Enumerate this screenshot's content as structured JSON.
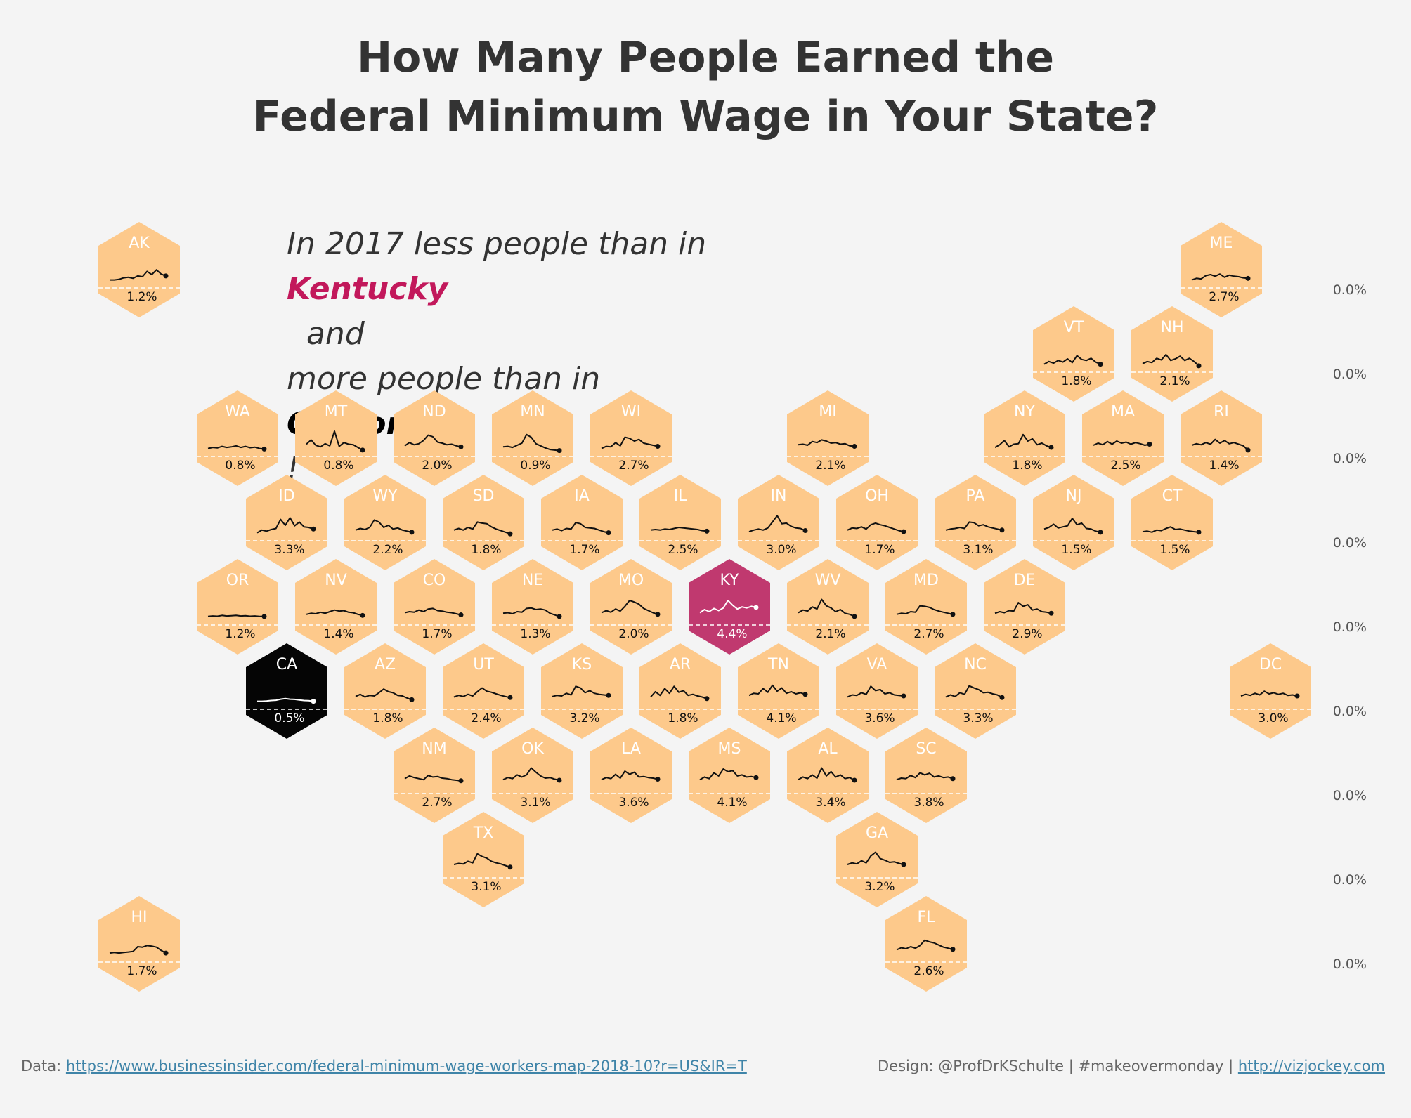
{
  "title": {
    "line1": "How Many People Earned the",
    "line2": "Federal Minimum Wage in Your State?"
  },
  "subtitle": {
    "line1_a": "In 2017 less people than in ",
    "line1_highlight": "Kentucky",
    "line1_b": "  and",
    "line2_a": "more people than in ",
    "line2_highlight": "California",
    "line2_b": "!"
  },
  "footer": {
    "data_label": "Data: ",
    "data_link": "https://www.businessinsider.com/federal-minimum-wage-workers-map-2018-10?r=US&IR=T",
    "design_label": "Design: @ProfDrKSchulte | #makeovermonday | ",
    "design_link": "http://vizjockey.com"
  },
  "colors": {
    "background": "#f4f4f4",
    "hex_default": "#fdc98b",
    "hex_kentucky": "#c0396f",
    "hex_california": "#050505",
    "title": "#333333",
    "highlight_kentucky": "#c2185b",
    "link": "#3f84a8"
  },
  "chart_data": {
    "type": "hex tile map with sparklines",
    "value_unit": "%",
    "highlight": {
      "max": "KY",
      "min": "CA"
    },
    "right_axis_labels": [
      "0.0%",
      "0.0%",
      "0.0%",
      "0.0%",
      "0.0%",
      "0.0%",
      "0.0%",
      "0.0%",
      "0.0%"
    ],
    "states": [
      {
        "code": "AK",
        "row": 0,
        "col": 0,
        "value_2017": "1.2%",
        "trend": [
          0.3,
          0.3,
          0.32,
          0.38,
          0.4,
          0.36,
          0.45,
          0.42,
          0.62,
          0.5,
          0.68,
          0.52,
          0.45
        ]
      },
      {
        "code": "ME",
        "row": 0,
        "col": 11,
        "value_2017": "2.7%",
        "trend": [
          0.3,
          0.36,
          0.34,
          0.46,
          0.5,
          0.44,
          0.52,
          0.4,
          0.48,
          0.44,
          0.42,
          0.38,
          0.36
        ]
      },
      {
        "code": "VT",
        "row": 1,
        "col": 9.5,
        "value_2017": "1.8%",
        "trend": [
          0.3,
          0.4,
          0.34,
          0.44,
          0.38,
          0.5,
          0.36,
          0.62,
          0.48,
          0.44,
          0.52,
          0.38,
          0.3
        ]
      },
      {
        "code": "NH",
        "row": 1,
        "col": 10.5,
        "value_2017": "2.1%",
        "trend": [
          0.32,
          0.4,
          0.36,
          0.52,
          0.46,
          0.66,
          0.44,
          0.5,
          0.6,
          0.44,
          0.52,
          0.4,
          0.24
        ]
      },
      {
        "code": "WA",
        "row": 2,
        "col": 1,
        "value_2017": "0.8%",
        "trend": [
          0.3,
          0.34,
          0.32,
          0.38,
          0.34,
          0.36,
          0.4,
          0.34,
          0.38,
          0.33,
          0.35,
          0.3,
          0.28
        ]
      },
      {
        "code": "MT",
        "row": 2,
        "col": 2,
        "value_2017": "0.8%",
        "trend": [
          0.46,
          0.62,
          0.42,
          0.36,
          0.48,
          0.4,
          0.95,
          0.38,
          0.52,
          0.46,
          0.44,
          0.34,
          0.24
        ]
      },
      {
        "code": "ND",
        "row": 2,
        "col": 3,
        "value_2017": "2.0%",
        "trend": [
          0.4,
          0.52,
          0.44,
          0.48,
          0.6,
          0.8,
          0.74,
          0.54,
          0.5,
          0.44,
          0.46,
          0.4,
          0.36
        ]
      },
      {
        "code": "MN",
        "row": 2,
        "col": 4,
        "value_2017": "0.9%",
        "trend": [
          0.36,
          0.38,
          0.34,
          0.42,
          0.5,
          0.82,
          0.72,
          0.48,
          0.4,
          0.32,
          0.26,
          0.24,
          0.22
        ]
      },
      {
        "code": "WI",
        "row": 2,
        "col": 5,
        "value_2017": "2.7%",
        "trend": [
          0.3,
          0.38,
          0.36,
          0.52,
          0.4,
          0.72,
          0.68,
          0.58,
          0.64,
          0.5,
          0.46,
          0.42,
          0.38
        ]
      },
      {
        "code": "MI",
        "row": 2,
        "col": 7,
        "value_2017": "2.1%",
        "trend": [
          0.44,
          0.46,
          0.42,
          0.56,
          0.52,
          0.62,
          0.58,
          0.5,
          0.52,
          0.46,
          0.48,
          0.4,
          0.38
        ]
      },
      {
        "code": "NY",
        "row": 2,
        "col": 9,
        "value_2017": "1.8%",
        "trend": [
          0.34,
          0.44,
          0.6,
          0.36,
          0.46,
          0.48,
          0.82,
          0.58,
          0.66,
          0.44,
          0.5,
          0.4,
          0.34
        ]
      },
      {
        "code": "MA",
        "row": 2,
        "col": 10,
        "value_2017": "2.5%",
        "trend": [
          0.42,
          0.5,
          0.44,
          0.56,
          0.46,
          0.58,
          0.5,
          0.54,
          0.46,
          0.52,
          0.48,
          0.42,
          0.46
        ]
      },
      {
        "code": "RI",
        "row": 2,
        "col": 11,
        "value_2017": "1.4%",
        "trend": [
          0.42,
          0.48,
          0.44,
          0.52,
          0.46,
          0.64,
          0.5,
          0.6,
          0.48,
          0.52,
          0.46,
          0.4,
          0.24
        ]
      },
      {
        "code": "ID",
        "row": 3,
        "col": 1.5,
        "value_2017": "3.3%",
        "trend": [
          0.3,
          0.4,
          0.36,
          0.42,
          0.46,
          0.8,
          0.58,
          0.86,
          0.56,
          0.7,
          0.52,
          0.5,
          0.44
        ]
      },
      {
        "code": "WY",
        "row": 3,
        "col": 2.5,
        "value_2017": "2.2%",
        "trend": [
          0.4,
          0.46,
          0.42,
          0.5,
          0.78,
          0.7,
          0.5,
          0.58,
          0.44,
          0.48,
          0.4,
          0.36,
          0.32
        ]
      },
      {
        "code": "SD",
        "row": 3,
        "col": 3.5,
        "value_2017": "1.8%",
        "trend": [
          0.4,
          0.46,
          0.4,
          0.5,
          0.44,
          0.7,
          0.66,
          0.64,
          0.52,
          0.44,
          0.38,
          0.32,
          0.26
        ]
      },
      {
        "code": "IA",
        "row": 3,
        "col": 4.5,
        "value_2017": "1.7%",
        "trend": [
          0.4,
          0.44,
          0.38,
          0.46,
          0.44,
          0.68,
          0.64,
          0.5,
          0.48,
          0.46,
          0.4,
          0.34,
          0.3
        ]
      },
      {
        "code": "IL",
        "row": 3,
        "col": 5.5,
        "value_2017": "2.5%",
        "trend": [
          0.4,
          0.42,
          0.4,
          0.44,
          0.42,
          0.46,
          0.5,
          0.48,
          0.46,
          0.44,
          0.42,
          0.38,
          0.36
        ]
      },
      {
        "code": "IN",
        "row": 3,
        "col": 6.5,
        "value_2017": "3.0%",
        "trend": [
          0.34,
          0.4,
          0.44,
          0.4,
          0.48,
          0.7,
          0.94,
          0.64,
          0.66,
          0.54,
          0.48,
          0.46,
          0.38
        ]
      },
      {
        "code": "OH",
        "row": 3,
        "col": 7.5,
        "value_2017": "1.7%",
        "trend": [
          0.4,
          0.48,
          0.46,
          0.52,
          0.44,
          0.6,
          0.66,
          0.6,
          0.56,
          0.5,
          0.44,
          0.38,
          0.34
        ]
      },
      {
        "code": "PA",
        "row": 3,
        "col": 8.5,
        "value_2017": "3.1%",
        "trend": [
          0.4,
          0.44,
          0.46,
          0.5,
          0.46,
          0.7,
          0.68,
          0.56,
          0.6,
          0.52,
          0.48,
          0.44,
          0.4
        ]
      },
      {
        "code": "NJ",
        "row": 3,
        "col": 9.5,
        "value_2017": "1.5%",
        "trend": [
          0.44,
          0.5,
          0.62,
          0.48,
          0.52,
          0.56,
          0.84,
          0.6,
          0.66,
          0.46,
          0.44,
          0.36,
          0.32
        ]
      },
      {
        "code": "CT",
        "row": 3,
        "col": 10.5,
        "value_2017": "1.5%",
        "trend": [
          0.34,
          0.36,
          0.32,
          0.4,
          0.38,
          0.46,
          0.52,
          0.42,
          0.44,
          0.4,
          0.36,
          0.34,
          0.32
        ]
      },
      {
        "code": "OR",
        "row": 4,
        "col": 1,
        "value_2017": "1.2%",
        "trend": [
          0.32,
          0.34,
          0.33,
          0.36,
          0.34,
          0.35,
          0.36,
          0.34,
          0.35,
          0.33,
          0.34,
          0.32,
          0.32
        ]
      },
      {
        "code": "NV",
        "row": 4,
        "col": 2,
        "value_2017": "1.4%",
        "trend": [
          0.4,
          0.44,
          0.42,
          0.48,
          0.44,
          0.5,
          0.56,
          0.52,
          0.54,
          0.48,
          0.46,
          0.4,
          0.36
        ]
      },
      {
        "code": "CO",
        "row": 4,
        "col": 3,
        "value_2017": "1.7%",
        "trend": [
          0.46,
          0.5,
          0.48,
          0.56,
          0.5,
          0.6,
          0.62,
          0.54,
          0.52,
          0.48,
          0.46,
          0.42,
          0.38
        ]
      },
      {
        "code": "NE",
        "row": 4,
        "col": 4,
        "value_2017": "1.3%",
        "trend": [
          0.44,
          0.46,
          0.42,
          0.5,
          0.48,
          0.62,
          0.64,
          0.58,
          0.6,
          0.56,
          0.44,
          0.38,
          0.32
        ]
      },
      {
        "code": "MO",
        "row": 4,
        "col": 5,
        "value_2017": "2.0%",
        "trend": [
          0.46,
          0.54,
          0.48,
          0.6,
          0.52,
          0.7,
          0.92,
          0.86,
          0.78,
          0.62,
          0.54,
          0.46,
          0.4
        ]
      },
      {
        "code": "KY",
        "row": 4,
        "col": 6,
        "value_2017": "4.4%",
        "trend": [
          0.46,
          0.58,
          0.5,
          0.62,
          0.54,
          0.64,
          0.92,
          0.74,
          0.6,
          0.68,
          0.64,
          0.7,
          0.66
        ]
      },
      {
        "code": "WV",
        "row": 4,
        "col": 7,
        "value_2017": "2.1%",
        "trend": [
          0.46,
          0.56,
          0.52,
          0.68,
          0.6,
          0.96,
          0.72,
          0.64,
          0.5,
          0.58,
          0.44,
          0.4,
          0.32
        ]
      },
      {
        "code": "MD",
        "row": 4,
        "col": 8,
        "value_2017": "2.7%",
        "trend": [
          0.4,
          0.44,
          0.42,
          0.5,
          0.48,
          0.72,
          0.7,
          0.66,
          0.58,
          0.52,
          0.48,
          0.44,
          0.4
        ]
      },
      {
        "code": "DE",
        "row": 4,
        "col": 9,
        "value_2017": "2.9%",
        "trend": [
          0.44,
          0.5,
          0.46,
          0.54,
          0.52,
          0.84,
          0.7,
          0.76,
          0.56,
          0.6,
          0.5,
          0.48,
          0.44
        ]
      },
      {
        "code": "CA",
        "row": 5,
        "col": 1.5,
        "value_2017": "0.5%",
        "trend": [
          0.3,
          0.3,
          0.31,
          0.33,
          0.34,
          0.38,
          0.4,
          0.38,
          0.37,
          0.35,
          0.33,
          0.32,
          0.3
        ]
      },
      {
        "code": "AZ",
        "row": 5,
        "col": 2.5,
        "value_2017": "1.8%",
        "trend": [
          0.48,
          0.56,
          0.46,
          0.52,
          0.5,
          0.62,
          0.76,
          0.66,
          0.62,
          0.52,
          0.5,
          0.42,
          0.36
        ]
      },
      {
        "code": "UT",
        "row": 5,
        "col": 3.5,
        "value_2017": "2.4%",
        "trend": [
          0.46,
          0.52,
          0.48,
          0.56,
          0.5,
          0.66,
          0.8,
          0.68,
          0.64,
          0.58,
          0.52,
          0.48,
          0.44
        ]
      },
      {
        "code": "KS",
        "row": 5,
        "col": 4.5,
        "value_2017": "3.2%",
        "trend": [
          0.48,
          0.52,
          0.5,
          0.6,
          0.54,
          0.86,
          0.8,
          0.62,
          0.7,
          0.6,
          0.56,
          0.54,
          0.52
        ]
      },
      {
        "code": "AR",
        "row": 5,
        "col": 5.5,
        "value_2017": "1.8%",
        "trend": [
          0.46,
          0.66,
          0.52,
          0.78,
          0.6,
          0.86,
          0.64,
          0.7,
          0.52,
          0.56,
          0.5,
          0.46,
          0.4
        ]
      },
      {
        "code": "TN",
        "row": 5,
        "col": 6.5,
        "value_2017": "4.1%",
        "trend": [
          0.52,
          0.6,
          0.58,
          0.78,
          0.64,
          0.9,
          0.68,
          0.8,
          0.6,
          0.66,
          0.58,
          0.62,
          0.56
        ]
      },
      {
        "code": "VA",
        "row": 5,
        "col": 7.5,
        "value_2017": "3.6%",
        "trend": [
          0.46,
          0.54,
          0.52,
          0.62,
          0.56,
          0.86,
          0.7,
          0.74,
          0.58,
          0.62,
          0.54,
          0.52,
          0.5
        ]
      },
      {
        "code": "NC",
        "row": 5,
        "col": 8.5,
        "value_2017": "3.3%",
        "trend": [
          0.46,
          0.54,
          0.48,
          0.62,
          0.56,
          0.88,
          0.8,
          0.74,
          0.62,
          0.64,
          0.58,
          0.54,
          0.44
        ]
      },
      {
        "code": "DC",
        "row": 5,
        "col": 11.5,
        "value_2017": "3.0%",
        "trend": [
          0.5,
          0.56,
          0.52,
          0.6,
          0.54,
          0.68,
          0.58,
          0.62,
          0.56,
          0.6,
          0.52,
          0.54,
          0.5
        ]
      },
      {
        "code": "NM",
        "row": 6,
        "col": 3,
        "value_2017": "2.7%",
        "trend": [
          0.56,
          0.66,
          0.6,
          0.56,
          0.52,
          0.68,
          0.62,
          0.64,
          0.58,
          0.56,
          0.52,
          0.5,
          0.48
        ]
      },
      {
        "code": "OK",
        "row": 6,
        "col": 4,
        "value_2017": "3.1%",
        "trend": [
          0.52,
          0.6,
          0.56,
          0.7,
          0.62,
          0.7,
          0.96,
          0.8,
          0.66,
          0.58,
          0.6,
          0.54,
          0.5
        ]
      },
      {
        "code": "LA",
        "row": 6,
        "col": 5,
        "value_2017": "3.6%",
        "trend": [
          0.52,
          0.6,
          0.56,
          0.72,
          0.58,
          0.84,
          0.72,
          0.8,
          0.62,
          0.64,
          0.6,
          0.58,
          0.54
        ]
      },
      {
        "code": "MS",
        "row": 6,
        "col": 6,
        "value_2017": "4.1%",
        "trend": [
          0.52,
          0.62,
          0.56,
          0.78,
          0.66,
          0.92,
          0.82,
          0.86,
          0.66,
          0.7,
          0.62,
          0.64,
          0.6
        ]
      },
      {
        "code": "AL",
        "row": 6,
        "col": 7,
        "value_2017": "3.4%",
        "trend": [
          0.52,
          0.62,
          0.56,
          0.7,
          0.58,
          0.96,
          0.66,
          0.82,
          0.62,
          0.7,
          0.56,
          0.6,
          0.5
        ]
      },
      {
        "code": "SC",
        "row": 6,
        "col": 8,
        "value_2017": "3.8%",
        "trend": [
          0.52,
          0.58,
          0.56,
          0.68,
          0.6,
          0.78,
          0.7,
          0.76,
          0.62,
          0.66,
          0.6,
          0.62,
          0.56
        ]
      },
      {
        "code": "TX",
        "row": 7,
        "col": 3.5,
        "value_2017": "3.1%",
        "trend": [
          0.5,
          0.54,
          0.52,
          0.62,
          0.56,
          0.9,
          0.8,
          0.74,
          0.62,
          0.56,
          0.52,
          0.46,
          0.4
        ]
      },
      {
        "code": "GA",
        "row": 7,
        "col": 7.5,
        "value_2017": "3.2%",
        "trend": [
          0.5,
          0.56,
          0.52,
          0.64,
          0.56,
          0.82,
          0.96,
          0.72,
          0.66,
          0.58,
          0.6,
          0.54,
          0.5
        ]
      },
      {
        "code": "HI",
        "row": 8,
        "col": 0,
        "value_2017": "1.7%",
        "trend": [
          0.34,
          0.36,
          0.34,
          0.36,
          0.38,
          0.4,
          0.58,
          0.56,
          0.62,
          0.6,
          0.56,
          0.44,
          0.34
        ]
      },
      {
        "code": "FL",
        "row": 8,
        "col": 8,
        "value_2017": "2.6%",
        "trend": [
          0.46,
          0.54,
          0.5,
          0.58,
          0.52,
          0.62,
          0.82,
          0.76,
          0.72,
          0.64,
          0.56,
          0.52,
          0.48
        ]
      }
    ]
  }
}
